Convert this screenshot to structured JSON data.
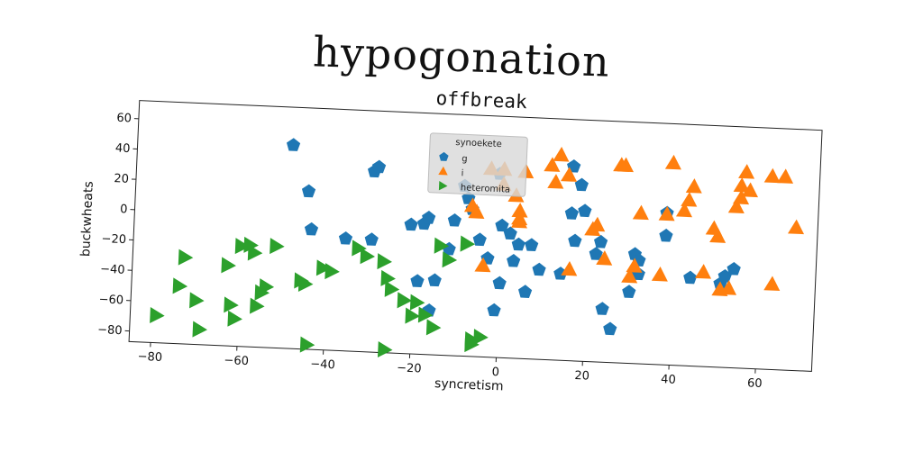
{
  "header": {
    "title": "hypogonation"
  },
  "chart_data": {
    "type": "scatter",
    "title": "offbreak",
    "xlabel": "syncretism",
    "ylabel": "buckwheats",
    "xlim": [
      -85,
      73
    ],
    "ylim": [
      -87,
      72
    ],
    "xticks": [
      -80,
      -60,
      -40,
      -20,
      0,
      20,
      40,
      60
    ],
    "yticks": [
      -80,
      -60,
      -40,
      -20,
      0,
      20,
      40,
      60
    ],
    "grid": false,
    "legend": {
      "title": "synoekete",
      "placement": "top-center"
    },
    "series": [
      {
        "name": "g",
        "marker": "pentagon",
        "color": "#1f77b4",
        "points": [
          [
            -49,
            47
          ],
          [
            -45,
            17
          ],
          [
            -44,
            -8
          ],
          [
            -36,
            -13
          ],
          [
            -30,
            32
          ],
          [
            -29,
            35
          ],
          [
            -30,
            -13
          ],
          [
            -21,
            -2
          ],
          [
            -19,
            -39
          ],
          [
            -18,
            -1
          ],
          [
            -17,
            3
          ],
          [
            -16,
            -58
          ],
          [
            -15,
            -38
          ],
          [
            -12,
            -17
          ],
          [
            -11,
            2
          ],
          [
            -9,
            25
          ],
          [
            -8,
            17
          ],
          [
            -7,
            10
          ],
          [
            -5,
            -10
          ],
          [
            -3,
            -22
          ],
          [
            -1,
            34
          ],
          [
            -1,
            -56
          ],
          [
            0,
            -38
          ],
          [
            0,
            0
          ],
          [
            2,
            -5
          ],
          [
            3,
            -23
          ],
          [
            4,
            -12
          ],
          [
            6,
            -43
          ],
          [
            7,
            -12
          ],
          [
            9,
            -28
          ],
          [
            14,
            -30
          ],
          [
            16,
            10
          ],
          [
            16,
            41
          ],
          [
            17,
            -8
          ],
          [
            18,
            29
          ],
          [
            19,
            12
          ],
          [
            22,
            -16
          ],
          [
            23,
            -8
          ],
          [
            24,
            -52
          ],
          [
            26,
            -65
          ],
          [
            30,
            -40
          ],
          [
            31,
            -15
          ],
          [
            32,
            -19
          ],
          [
            32,
            -28
          ],
          [
            38,
            -2
          ],
          [
            38,
            13
          ],
          [
            44,
            -29
          ],
          [
            51,
            -32
          ],
          [
            52,
            -27
          ],
          [
            54,
            -22
          ]
        ]
      },
      {
        "name": "i",
        "marker": "triangle-up",
        "color": "#ff7f0e",
        "points": [
          [
            -7,
            12
          ],
          [
            -6,
            8
          ],
          [
            -4,
            -27
          ],
          [
            -3,
            37
          ],
          [
            0,
            37
          ],
          [
            0,
            27
          ],
          [
            3,
            20
          ],
          [
            4,
            3
          ],
          [
            4,
            5
          ],
          [
            4,
            10
          ],
          [
            5,
            36
          ],
          [
            11,
            41
          ],
          [
            12,
            30
          ],
          [
            13,
            48
          ],
          [
            15,
            35
          ],
          [
            16,
            -27
          ],
          [
            21,
            0
          ],
          [
            22,
            3
          ],
          [
            24,
            -19
          ],
          [
            27,
            43
          ],
          [
            28,
            43
          ],
          [
            30,
            -30
          ],
          [
            31,
            -23
          ],
          [
            32,
            12
          ],
          [
            37,
            -28
          ],
          [
            38,
            12
          ],
          [
            39,
            46
          ],
          [
            42,
            15
          ],
          [
            43,
            22
          ],
          [
            44,
            31
          ],
          [
            47,
            -25
          ],
          [
            49,
            4
          ],
          [
            50,
            -1
          ],
          [
            51,
            -36
          ],
          [
            53,
            -35
          ],
          [
            54,
            19
          ],
          [
            55,
            33
          ],
          [
            55,
            25
          ],
          [
            56,
            42
          ],
          [
            57,
            30
          ],
          [
            62,
            40
          ],
          [
            63,
            -31
          ],
          [
            65,
            40
          ],
          [
            68,
            7
          ]
        ]
      },
      {
        "name": "heteromita",
        "marker": "triangle-right",
        "color": "#2ca02c",
        "points": [
          [
            -79,
            -69
          ],
          [
            -74,
            -49
          ],
          [
            -73,
            -30
          ],
          [
            -70,
            -58
          ],
          [
            -69,
            -77
          ],
          [
            -63,
            -34
          ],
          [
            -62,
            -60
          ],
          [
            -61,
            -69
          ],
          [
            -60,
            -21
          ],
          [
            -58,
            -20
          ],
          [
            -57,
            -25
          ],
          [
            -56,
            -60
          ],
          [
            -55,
            -51
          ],
          [
            -54,
            -47
          ],
          [
            -52,
            -20
          ],
          [
            -46,
            -42
          ],
          [
            -45,
            -44
          ],
          [
            -44,
            -84
          ],
          [
            -41,
            -33
          ],
          [
            -39,
            -35
          ],
          [
            -33,
            -19
          ],
          [
            -31,
            -24
          ],
          [
            -27,
            -27
          ],
          [
            -26,
            -85
          ],
          [
            -26,
            -38
          ],
          [
            -25,
            -45
          ],
          [
            -22,
            -52
          ],
          [
            -20,
            -62
          ],
          [
            -19,
            -53
          ],
          [
            -17,
            -61
          ],
          [
            -15,
            -69
          ],
          [
            -14,
            -15
          ],
          [
            -12,
            -24
          ],
          [
            -8,
            -13
          ],
          [
            -6,
            -79
          ],
          [
            -6,
            -76
          ],
          [
            -4,
            -74
          ]
        ]
      }
    ]
  }
}
